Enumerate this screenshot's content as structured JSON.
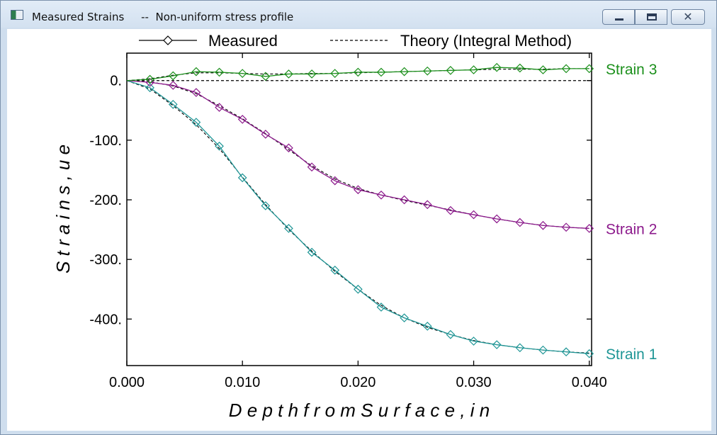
{
  "window": {
    "title": "Measured Strains",
    "subtitle": "--  Non-uniform stress profile",
    "buttons": {
      "minimize": "minimize",
      "maximize": "maximize",
      "close": "✕"
    }
  },
  "colors": {
    "strain1": "#1f9696",
    "strain2": "#8c1a8c",
    "strain3": "#1c901c",
    "theory": "#000000"
  },
  "chart_data": {
    "type": "line",
    "xlabel": "D e p t h   f r o m   S u r f a c e ,   i n",
    "ylabel": "S t r a i n s ,   u e",
    "xlim": [
      0,
      0.0402
    ],
    "ylim": [
      -478,
      46
    ],
    "xticks": [
      0,
      0.01,
      0.02,
      0.03,
      0.04
    ],
    "xtick_labels": [
      "0.000",
      "0.010",
      "0.020",
      "0.030",
      "0.040"
    ],
    "yticks": [
      0,
      -100,
      -200,
      -300,
      -400
    ],
    "ytick_labels": [
      "0.",
      "-100.",
      "-200.",
      "-300.",
      "-400."
    ],
    "grid": false,
    "legend": {
      "measured": "Measured",
      "theory": "Theory (Integral Method)",
      "position": "top"
    },
    "x": [
      0,
      0.002,
      0.004,
      0.006,
      0.008,
      0.01,
      0.012,
      0.014,
      0.016,
      0.018,
      0.02,
      0.022,
      0.024,
      0.026,
      0.028,
      0.03,
      0.032,
      0.034,
      0.036,
      0.038,
      0.04
    ],
    "series": [
      {
        "name": "Strain 1",
        "color": "#1f9696",
        "measured": [
          0,
          -12,
          -40,
          -70,
          -110,
          -163,
          -210,
          -248,
          -288,
          -318,
          -350,
          -380,
          -398,
          -412,
          -426,
          -437,
          -443,
          -448,
          -452,
          -455,
          -458
        ],
        "theory": [
          0,
          -14,
          -42,
          -74,
          -114,
          -162,
          -208,
          -250,
          -286,
          -320,
          -350,
          -377,
          -398,
          -414,
          -426,
          -436,
          -443,
          -448,
          -452,
          -455,
          -457
        ]
      },
      {
        "name": "Strain 2",
        "color": "#8c1a8c",
        "measured": [
          0,
          -3,
          -8,
          -20,
          -45,
          -65,
          -90,
          -113,
          -145,
          -168,
          -183,
          -192,
          -200,
          -208,
          -218,
          -225,
          -232,
          -238,
          -243,
          -246,
          -248
        ],
        "theory": [
          0,
          -2,
          -9,
          -22,
          -42,
          -64,
          -89,
          -116,
          -143,
          -165,
          -181,
          -192,
          -201,
          -209,
          -217,
          -225,
          -232,
          -238,
          -243,
          -246,
          -248
        ]
      },
      {
        "name": "Strain 3",
        "color": "#1c901c",
        "measured": [
          0,
          2,
          8,
          15,
          14,
          12,
          7,
          11,
          11,
          12,
          14,
          14,
          15,
          16,
          17,
          18,
          22,
          21,
          18,
          20,
          20
        ],
        "theory": [
          0,
          3,
          9,
          13,
          13,
          12,
          11,
          11,
          12,
          12,
          13,
          14,
          15,
          16,
          17,
          18,
          19,
          19,
          19,
          20,
          20
        ]
      }
    ]
  }
}
